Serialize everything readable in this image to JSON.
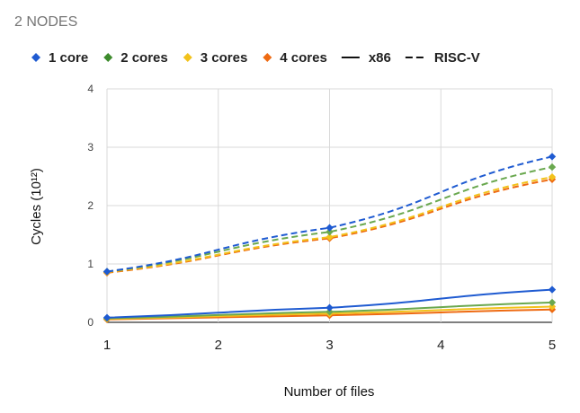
{
  "chart_data": {
    "type": "line",
    "title": "2 NODES",
    "xlabel": "Number of files",
    "ylabel": "Cycles (10¹²)",
    "x": [
      1,
      3,
      5
    ],
    "xlim": [
      1,
      5
    ],
    "ylim": [
      0,
      4
    ],
    "xticks": [
      "1",
      "2",
      "3",
      "4",
      "5"
    ],
    "yticks": [
      "0",
      "1",
      "2",
      "3",
      "4"
    ],
    "grid": true,
    "legend_position": "top",
    "legend": [
      {
        "label": "1 core",
        "kind": "marker",
        "color": "#1f5bd1"
      },
      {
        "label": "2 cores",
        "kind": "marker",
        "color": "#3d8b2c"
      },
      {
        "label": "3 cores",
        "kind": "marker",
        "color": "#f2c21b"
      },
      {
        "label": "4 cores",
        "kind": "marker",
        "color": "#ee6a12"
      },
      {
        "label": "x86",
        "kind": "solid-line",
        "color": "#111111"
      },
      {
        "label": "RISC-V",
        "kind": "dashed-line",
        "color": "#111111"
      }
    ],
    "series": [
      {
        "name": "1 core RISC-V",
        "arch": "RISC-V",
        "color": "#1f5bd1",
        "values": [
          0.87,
          1.62,
          2.84
        ]
      },
      {
        "name": "2 cores RISC-V",
        "arch": "RISC-V",
        "color": "#6aa84f",
        "values": [
          0.87,
          1.55,
          2.66
        ]
      },
      {
        "name": "3 cores RISC-V",
        "arch": "RISC-V",
        "color": "#f2c21b",
        "values": [
          0.86,
          1.46,
          2.49
        ]
      },
      {
        "name": "4 cores RISC-V",
        "arch": "RISC-V",
        "color": "#ee6a12",
        "values": [
          0.85,
          1.44,
          2.45
        ]
      },
      {
        "name": "1 core x86",
        "arch": "x86",
        "color": "#1f5bd1",
        "values": [
          0.08,
          0.25,
          0.56
        ]
      },
      {
        "name": "2 cores x86",
        "arch": "x86",
        "color": "#6aa84f",
        "values": [
          0.07,
          0.18,
          0.34
        ]
      },
      {
        "name": "3 cores x86",
        "arch": "x86",
        "color": "#f2c21b",
        "values": [
          0.06,
          0.15,
          0.27
        ]
      },
      {
        "name": "4 cores x86",
        "arch": "x86",
        "color": "#ee6a12",
        "values": [
          0.05,
          0.12,
          0.22
        ]
      }
    ]
  }
}
